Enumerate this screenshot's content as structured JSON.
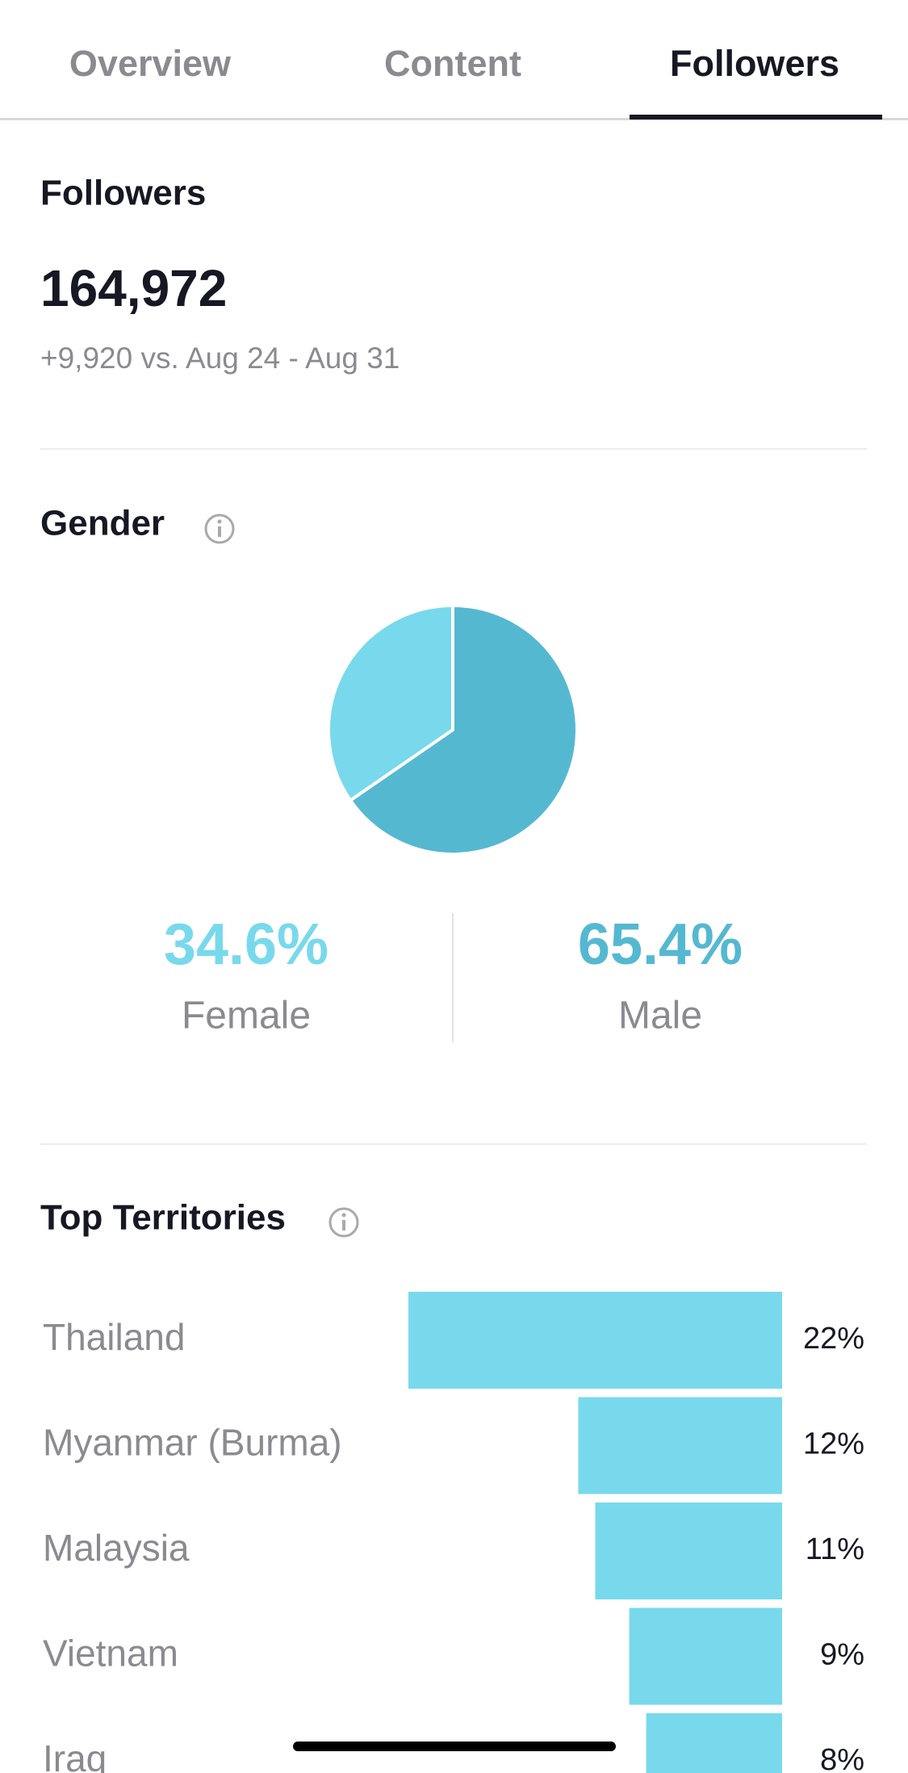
{
  "tabs": [
    "Overview",
    "Content",
    "Followers"
  ],
  "followers": {
    "title": "Followers",
    "total": "164,972",
    "change": "+9,920 vs. Aug 24 - Aug 31"
  },
  "chart_data": [
    {
      "type": "pie",
      "title": "Gender",
      "categories": [
        "Female",
        "Male"
      ],
      "values": [
        34.6,
        65.4
      ],
      "value_labels": [
        "34.6%",
        "65.4%"
      ],
      "colors": [
        "#78d9ec",
        "#55b8d1"
      ]
    },
    {
      "type": "bar",
      "title": "Top Territories",
      "categories": [
        "Thailand",
        "Myanmar (Burma)",
        "Malaysia",
        "Vietnam",
        "Iraq"
      ],
      "values": [
        22,
        12,
        11,
        9,
        8
      ],
      "value_labels": [
        "22%",
        "12%",
        "11%",
        "9%",
        "8%"
      ],
      "color": "#78d9ec"
    }
  ]
}
